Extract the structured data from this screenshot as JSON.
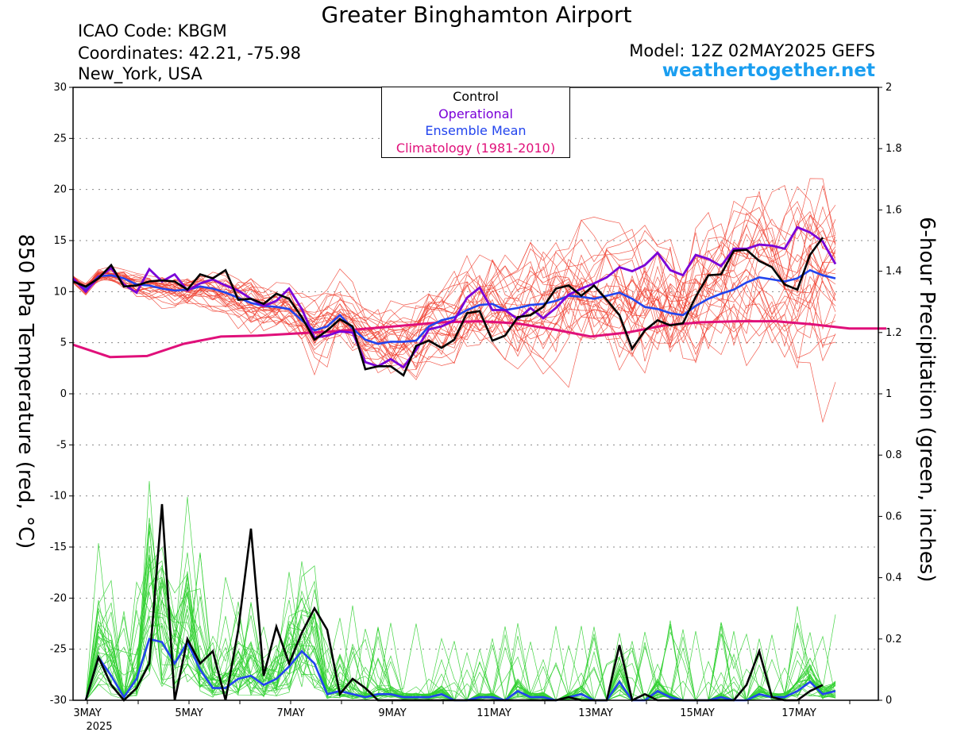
{
  "header": {
    "title": "Greater Binghamton Airport",
    "icao": "ICAO Code: KBGM",
    "coords": "Coordinates: 42.21, -75.98",
    "location": "New_York, USA",
    "model": "Model: 12Z 02MAY2025 GEFS",
    "site": "weathertogether.net"
  },
  "colors": {
    "control": "#000000",
    "operational": "#7a00d8",
    "mean": "#2244ee",
    "climatology": "#e0107a",
    "members_temp": "#f04030",
    "members_precip": "#30d030",
    "site": "#1a9ef0"
  },
  "chart_data": {
    "type": "line",
    "xlabel": "",
    "x_tick_labels": [
      "3MAY",
      "5MAY",
      "7MAY",
      "9MAY",
      "11MAY",
      "13MAY",
      "15MAY",
      "17MAY"
    ],
    "x_year_label": "2025",
    "ylabel_left": "850 hPa Temperature (red, °C)",
    "ylabel_right": "6-hour Precipitation (green, inches)",
    "ylim_left": [
      -30,
      30
    ],
    "yticks_left": [
      "30",
      "25",
      "20",
      "15",
      "10",
      "5",
      "0",
      "-5",
      "-10",
      "-15",
      "-20",
      "-25",
      "-30"
    ],
    "ylim_right": [
      0,
      2
    ],
    "yticks_right": [
      "2",
      "1.8",
      "1.6",
      "1.4",
      "1.2",
      "1",
      "0.8",
      "0.6",
      "0.4",
      "0.2",
      "0"
    ],
    "grid": true,
    "legend": [
      "Control",
      "Operational",
      "Ensemble Mean",
      "Climatology (1981-2010)"
    ],
    "legend_position": "top-center",
    "time_step_hours": 6,
    "temperature": {
      "control": [
        11,
        10.5,
        11.3,
        12.6,
        10.5,
        10.6,
        11,
        11.1,
        11,
        10.2,
        11.7,
        11.3,
        12.1,
        9.2,
        9.3,
        8.8,
        9.8,
        9.3,
        7.5,
        5.3,
        6.2,
        7.3,
        6.6,
        2.4,
        2.7,
        2.7,
        1.8,
        4.7,
        5.2,
        4.5,
        5.3,
        7.9,
        8.1,
        5.2,
        5.7,
        7.5,
        7.7,
        8.5,
        10.3,
        10.6,
        9.6,
        10.6,
        9.2,
        7.7,
        4.4,
        6.2,
        7.2,
        6.7,
        6.9,
        9.5,
        11.6,
        11.7,
        14,
        14.1,
        13,
        12.4,
        10.7,
        10.2,
        13.6,
        15.3
      ],
      "operational": [
        11.3,
        10,
        11.4,
        12.3,
        10.7,
        9.9,
        12.2,
        11,
        11.7,
        10.1,
        10.8,
        11.2,
        10.6,
        10.1,
        9.3,
        8.6,
        9.1,
        10.3,
        8.3,
        5.5,
        5.7,
        6.1,
        6,
        3.1,
        2.7,
        3.4,
        2.6,
        4.3,
        6.3,
        6.6,
        7.2,
        9.4,
        10.4,
        8.2,
        8.2,
        7.3,
        8.4,
        7.4,
        8.4,
        9.7,
        10.3,
        10.8,
        11.4,
        12.4,
        12,
        12.6,
        13.8,
        12.1,
        11.6,
        13.6,
        13.2,
        12.5,
        14.2,
        14.2,
        14.6,
        14.5,
        14.2,
        16.3,
        15.8,
        14.9,
        12.7
      ],
      "mean": [
        11.2,
        10.2,
        11.5,
        11.6,
        11.3,
        10.7,
        10.6,
        10.3,
        10.1,
        10.2,
        10.5,
        10.3,
        9.9,
        9.4,
        8.9,
        8.6,
        8.5,
        8.3,
        7.2,
        6.2,
        6.6,
        7.7,
        6.4,
        5.3,
        4.9,
        5.1,
        5.1,
        5.2,
        6.6,
        7.2,
        7.5,
        8.2,
        8.7,
        8.8,
        8.2,
        8.4,
        8.7,
        8.8,
        9.1,
        9.6,
        9.5,
        9.3,
        9.6,
        9.9,
        9.3,
        8.5,
        8.3,
        7.9,
        7.7,
        8.6,
        9.3,
        9.8,
        10.2,
        10.9,
        11.4,
        11.2,
        11,
        11.3,
        12.1,
        11.6,
        11.3
      ],
      "climatology": [
        4.8,
        3.6,
        3.7,
        4.9,
        5.6,
        5.7,
        5.9,
        6.1,
        6.4,
        6.7,
        7,
        7.1,
        6.9,
        6.3,
        5.6,
        6,
        6.7,
        7,
        7.1,
        7.1,
        6.8,
        6.4,
        6.4
      ]
    },
    "precipitation": {
      "control": [
        0,
        0.14,
        0.05,
        0,
        0.04,
        0.12,
        0.64,
        0,
        0.2,
        0.12,
        0.16,
        0,
        0.23,
        0.56,
        0.08,
        0.24,
        0.12,
        0.22,
        0.3,
        0.23,
        0.02,
        0.07,
        0.04,
        0,
        0,
        0,
        0,
        0,
        0,
        0,
        0,
        0,
        0,
        0,
        0,
        0,
        0,
        0,
        0.01,
        0,
        0,
        0,
        0.18,
        0,
        0.02,
        0,
        0,
        0,
        0,
        0,
        0,
        0,
        0.05,
        0.16,
        0.01,
        0,
        0,
        0.03,
        0.05
      ],
      "mean": [
        0,
        0.14,
        0.08,
        0.01,
        0.07,
        0.2,
        0.19,
        0.12,
        0.19,
        0.1,
        0.04,
        0.04,
        0.07,
        0.08,
        0.05,
        0.07,
        0.11,
        0.16,
        0.12,
        0.02,
        0.03,
        0.02,
        0.01,
        0.02,
        0.02,
        0.01,
        0.01,
        0.01,
        0.02,
        0,
        0,
        0.01,
        0.01,
        0,
        0.03,
        0.01,
        0.01,
        0,
        0.01,
        0.02,
        0,
        0,
        0.06,
        0,
        0,
        0.03,
        0.01,
        0,
        0,
        0,
        0.01,
        0,
        0,
        0.02,
        0.01,
        0.01,
        0.03,
        0.06,
        0.02,
        0.03
      ]
    }
  }
}
